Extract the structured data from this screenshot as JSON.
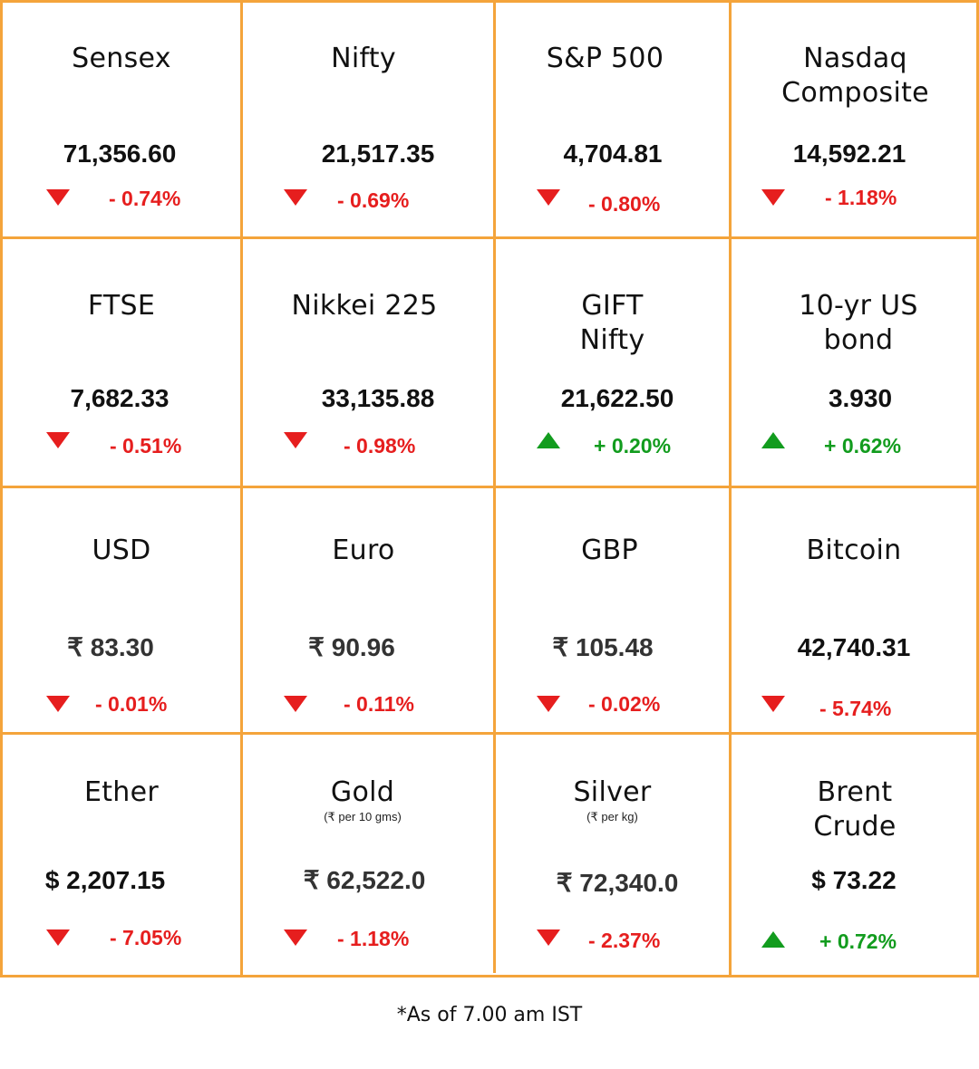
{
  "tiles": [
    {
      "name": "Sensex",
      "value": "71,356.60",
      "direction": "down",
      "change": "- 0.74%"
    },
    {
      "name": "Nifty",
      "value": "21,517.35",
      "direction": "down",
      "change": "- 0.69%"
    },
    {
      "name": "S&P 500",
      "value": "4,704.81",
      "direction": "down",
      "change": "- 0.80%"
    },
    {
      "name": "Nasdaq Composite",
      "value": "14,592.21",
      "direction": "down",
      "change": "- 1.18%"
    },
    {
      "name": "FTSE",
      "value": "7,682.33",
      "direction": "down",
      "change": "- 0.51%"
    },
    {
      "name": "Nikkei 225",
      "value": "33,135.88",
      "direction": "down",
      "change": "- 0.98%"
    },
    {
      "name": "GIFT Nifty",
      "value": "21,622.50",
      "direction": "up",
      "change": "+ 0.20%"
    },
    {
      "name": "10-yr US bond",
      "value": "3.930",
      "direction": "up",
      "change": "+ 0.62%"
    },
    {
      "name": "USD",
      "value": "₹ 83.30",
      "direction": "down",
      "change": "- 0.01%"
    },
    {
      "name": "Euro",
      "value": "₹ 90.96",
      "direction": "down",
      "change": "- 0.11%"
    },
    {
      "name": "GBP",
      "value": "₹ 105.48",
      "direction": "down",
      "change": "- 0.02%"
    },
    {
      "name": "Bitcoin",
      "value": "42,740.31",
      "direction": "down",
      "change": "- 5.74%"
    },
    {
      "name": "Ether",
      "value": "$ 2,207.15",
      "direction": "down",
      "change": "- 7.05%"
    },
    {
      "name": "Gold",
      "sub": "(₹ per 10 gms)",
      "value": "₹ 62,522.0",
      "direction": "down",
      "change": "- 1.18%"
    },
    {
      "name": "Silver",
      "sub": "(₹ per kg)",
      "value": "₹ 72,340.0",
      "direction": "down",
      "change": "- 2.37%"
    },
    {
      "name": "Brent Crude",
      "value": "$ 73.22",
      "direction": "up",
      "change": "+ 0.72%"
    }
  ],
  "footnote": "*As of 7.00 am IST",
  "colors": {
    "border": "#f4a43b",
    "negative": "#e61e1e",
    "positive": "#129c1e"
  }
}
